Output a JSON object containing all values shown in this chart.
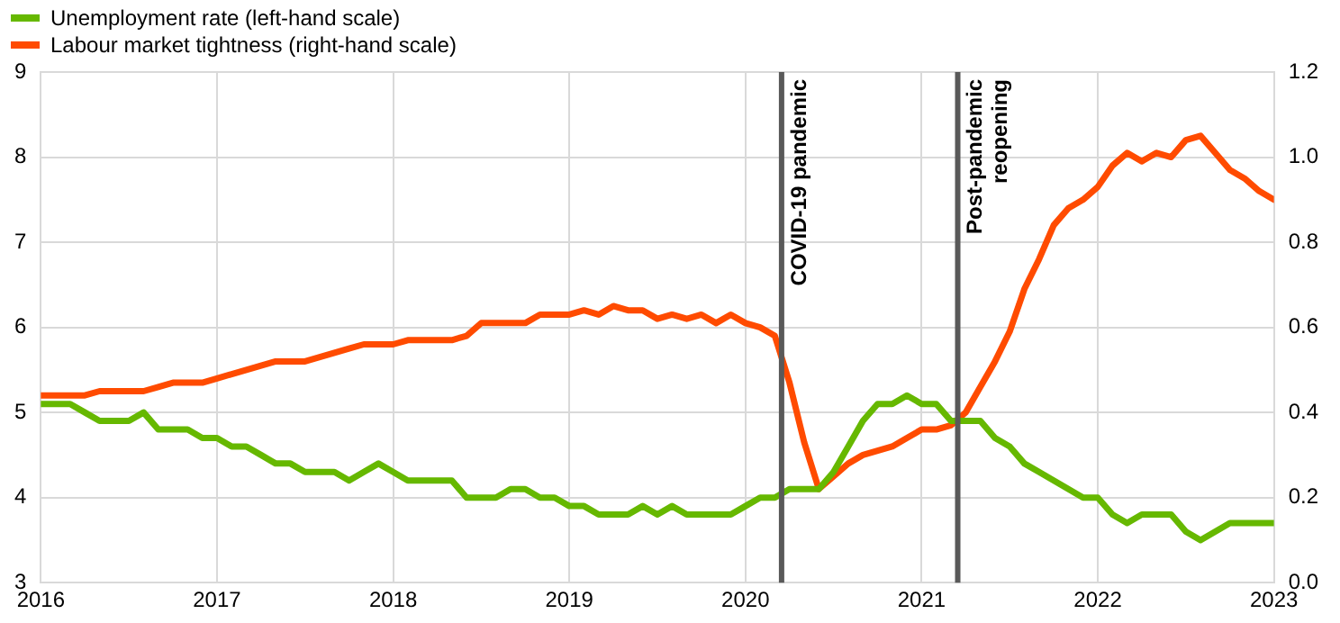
{
  "chart_data": {
    "type": "line",
    "x": [
      "2016-01",
      "2016-02",
      "2016-03",
      "2016-04",
      "2016-05",
      "2016-06",
      "2016-07",
      "2016-08",
      "2016-09",
      "2016-10",
      "2016-11",
      "2016-12",
      "2017-01",
      "2017-02",
      "2017-03",
      "2017-04",
      "2017-05",
      "2017-06",
      "2017-07",
      "2017-08",
      "2017-09",
      "2017-10",
      "2017-11",
      "2017-12",
      "2018-01",
      "2018-02",
      "2018-03",
      "2018-04",
      "2018-05",
      "2018-06",
      "2018-07",
      "2018-08",
      "2018-09",
      "2018-10",
      "2018-11",
      "2018-12",
      "2019-01",
      "2019-02",
      "2019-03",
      "2019-04",
      "2019-05",
      "2019-06",
      "2019-07",
      "2019-08",
      "2019-09",
      "2019-10",
      "2019-11",
      "2019-12",
      "2020-01",
      "2020-02",
      "2020-03",
      "2020-04",
      "2020-05",
      "2020-06",
      "2020-07",
      "2020-08",
      "2020-09",
      "2020-10",
      "2020-11",
      "2020-12",
      "2021-01",
      "2021-02",
      "2021-03",
      "2021-04",
      "2021-05",
      "2021-06",
      "2021-07",
      "2021-08",
      "2021-09",
      "2021-10",
      "2021-11",
      "2021-12",
      "2022-01",
      "2022-02",
      "2022-03",
      "2022-04",
      "2022-05",
      "2022-06",
      "2022-07",
      "2022-08",
      "2022-09",
      "2022-10",
      "2022-11",
      "2022-12",
      "2023-01"
    ],
    "series": [
      {
        "name": "Unemployment rate (left-hand scale)",
        "color": "#66b800",
        "values": [
          5.1,
          5.1,
          5.1,
          5.0,
          4.9,
          4.9,
          4.9,
          5.0,
          4.8,
          4.8,
          4.8,
          4.7,
          4.7,
          4.6,
          4.6,
          4.5,
          4.4,
          4.4,
          4.3,
          4.3,
          4.3,
          4.2,
          4.3,
          4.4,
          4.3,
          4.2,
          4.2,
          4.2,
          4.2,
          4.0,
          4.0,
          4.0,
          4.1,
          4.1,
          4.0,
          4.0,
          3.9,
          3.9,
          3.8,
          3.8,
          3.8,
          3.9,
          3.8,
          3.9,
          3.8,
          3.8,
          3.8,
          3.8,
          3.9,
          4.0,
          4.0,
          4.1,
          4.1,
          4.1,
          4.3,
          4.6,
          4.9,
          5.1,
          5.1,
          5.2,
          5.1,
          5.1,
          4.9,
          4.9,
          4.9,
          4.7,
          4.6,
          4.4,
          4.3,
          4.2,
          4.1,
          4.0,
          4.0,
          3.8,
          3.7,
          3.8,
          3.8,
          3.8,
          3.6,
          3.5,
          3.6,
          3.7,
          3.7,
          3.7,
          3.7
        ]
      },
      {
        "name": "Labour market tightness (right-hand scale)",
        "color": "#ff4b00",
        "axis": "y2",
        "values": [
          0.44,
          0.44,
          0.44,
          0.44,
          0.45,
          0.45,
          0.45,
          0.45,
          0.46,
          0.47,
          0.47,
          0.47,
          0.48,
          0.49,
          0.5,
          0.51,
          0.52,
          0.52,
          0.52,
          0.53,
          0.54,
          0.55,
          0.56,
          0.56,
          0.56,
          0.57,
          0.57,
          0.57,
          0.57,
          0.58,
          0.61,
          0.61,
          0.61,
          0.61,
          0.63,
          0.63,
          0.63,
          0.64,
          0.63,
          0.65,
          0.64,
          0.64,
          0.62,
          0.63,
          0.62,
          0.63,
          0.61,
          0.63,
          0.61,
          0.6,
          0.58,
          0.47,
          0.33,
          0.22,
          0.25,
          0.28,
          0.3,
          0.31,
          0.32,
          0.34,
          0.36,
          0.36,
          0.37,
          0.4,
          0.46,
          0.52,
          0.59,
          0.69,
          0.76,
          0.84,
          0.88,
          0.9,
          0.93,
          0.98,
          1.01,
          0.99,
          1.01,
          1.0,
          1.04,
          1.05,
          1.01,
          0.97,
          0.95,
          0.92,
          0.9
        ]
      }
    ],
    "xlim": [
      "2016-01",
      "2023-01"
    ],
    "xticks": [
      "2016",
      "2017",
      "2018",
      "2019",
      "2020",
      "2021",
      "2022",
      "2023"
    ],
    "ylim": [
      3,
      9
    ],
    "yticks": [
      3,
      4,
      5,
      6,
      7,
      8,
      9
    ],
    "y2lim": [
      0,
      1.2
    ],
    "y2ticks": [
      {
        "value": 0,
        "label": "0.0"
      },
      0.2,
      0.4,
      0.6,
      0.8,
      {
        "value": 1,
        "label": "1.0"
      },
      1.2
    ],
    "ref_lines": [
      {
        "axis": "x",
        "value": "2020-03-15",
        "label": "COVID-19 pandemic",
        "color": "#595959"
      },
      {
        "axis": "x",
        "value": "2021-03-15",
        "label": "Post-pandemic reopening",
        "color": "#595959"
      }
    ],
    "grid": true,
    "legend": "top left",
    "marker": "none",
    "line_style": "solid"
  }
}
